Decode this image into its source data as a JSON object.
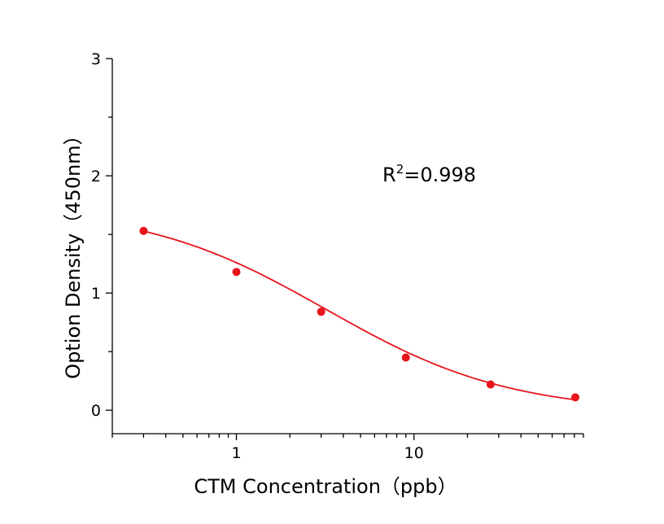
{
  "chart_data": {
    "type": "scatter",
    "xlabel": "CTM Concentration（ppb）",
    "ylabel": "Option Density（450nm）",
    "x_scale": "log",
    "xlim": [
      0.2,
      90
    ],
    "ylim": [
      -0.2,
      3
    ],
    "x_ticks": [
      {
        "value": 1,
        "label": "1"
      },
      {
        "value": 10,
        "label": "10"
      }
    ],
    "y_ticks": [
      {
        "value": 0,
        "label": "0"
      },
      {
        "value": 1,
        "label": "1"
      },
      {
        "value": 2,
        "label": "2"
      },
      {
        "value": 3,
        "label": "3"
      }
    ],
    "grid": false,
    "points": [
      {
        "x": 0.3,
        "y": 1.53
      },
      {
        "x": 1,
        "y": 1.18
      },
      {
        "x": 3,
        "y": 0.84
      },
      {
        "x": 9,
        "y": 0.45
      },
      {
        "x": 27,
        "y": 0.22
      },
      {
        "x": 81,
        "y": 0.11
      }
    ],
    "fit": {
      "type": "4PL",
      "top": 1.74,
      "bottom": -0.02,
      "ec50": 3.2,
      "hill": 0.84
    },
    "color": "#e8141b",
    "annotation": {
      "base": "R",
      "superscript": "2",
      "rest": "=0.998"
    }
  }
}
